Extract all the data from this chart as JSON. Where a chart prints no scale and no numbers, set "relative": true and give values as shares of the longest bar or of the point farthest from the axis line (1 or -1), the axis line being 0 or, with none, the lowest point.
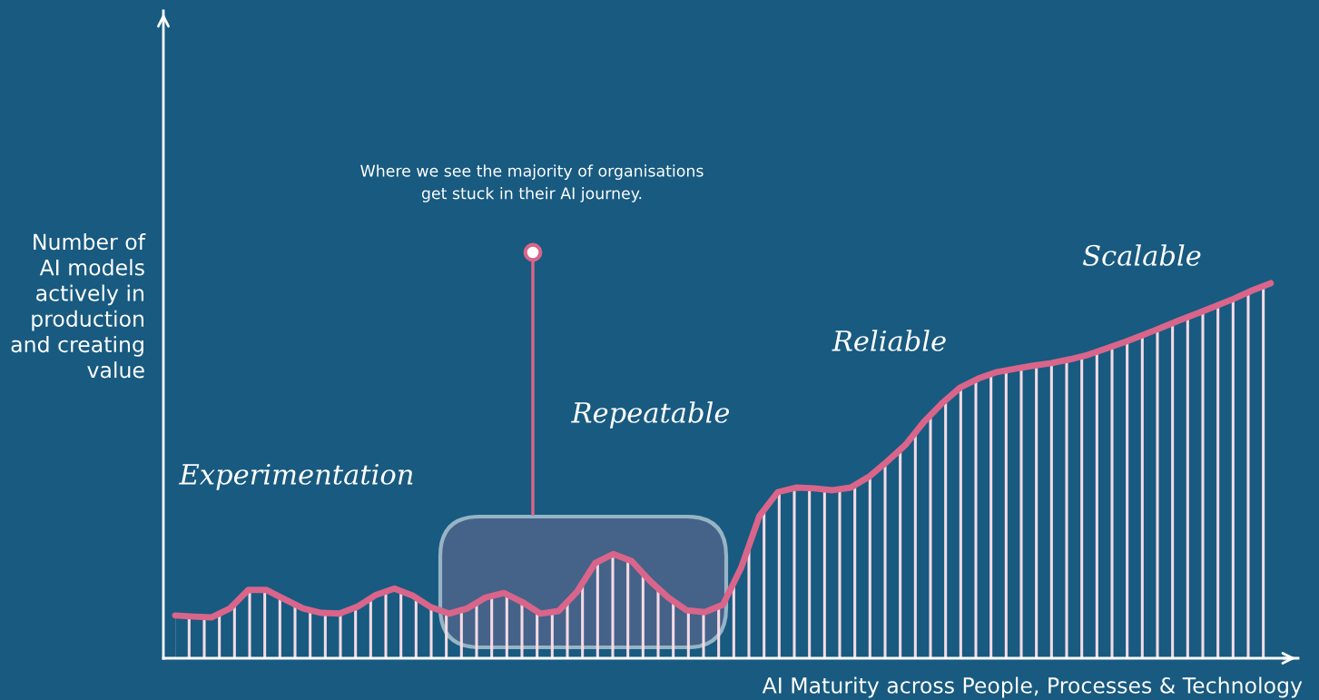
{
  "chart_data": {
    "type": "area",
    "relative": true,
    "xlabel": "AI Maturity across People, Processes & Technology",
    "ylabel": "Number of\nAI models\nactively in\nproduction\nand creating\nvalue",
    "categories": [
      null,
      null,
      null,
      null,
      null,
      null,
      null,
      null,
      null,
      null,
      null,
      null,
      null,
      null,
      null,
      null,
      null,
      null,
      null,
      null,
      null,
      null,
      null,
      null,
      null,
      null,
      null,
      null,
      null,
      null,
      null,
      null,
      null,
      null,
      null,
      null,
      null,
      null,
      null,
      null,
      null,
      null,
      null,
      null,
      null,
      null,
      null,
      null,
      null,
      null,
      null,
      null,
      null,
      null,
      null,
      null,
      null,
      null,
      null,
      null,
      null
    ],
    "series": [
      {
        "color": "#d9658a",
        "values": [
          0.114,
          0.111,
          0.109,
          0.133,
          0.182,
          0.182,
          0.157,
          0.133,
          0.121,
          0.119,
          0.138,
          0.169,
          0.186,
          0.167,
          0.136,
          0.119,
          0.133,
          0.162,
          0.174,
          0.15,
          0.119,
          0.126,
          0.177,
          0.254,
          0.278,
          0.259,
          0.206,
          0.162,
          0.128,
          0.123,
          0.143,
          0.242,
          0.38,
          0.443,
          0.455,
          0.453,
          0.448,
          0.455,
          0.484,
          0.525,
          0.569,
          0.63,
          0.68,
          0.722,
          0.746,
          0.763,
          0.772,
          0.78,
          0.787,
          0.797,
          0.809,
          0.826,
          0.843,
          0.862,
          0.881,
          0.901,
          0.92,
          0.939,
          0.959,
          0.981,
          1
        ]
      }
    ],
    "annotations": [
      "Experimentation",
      "Repeatable",
      "Reliable",
      "Scalable",
      "Where we see the majority of organisations\nget stuck in their AI journey."
    ]
  }
}
